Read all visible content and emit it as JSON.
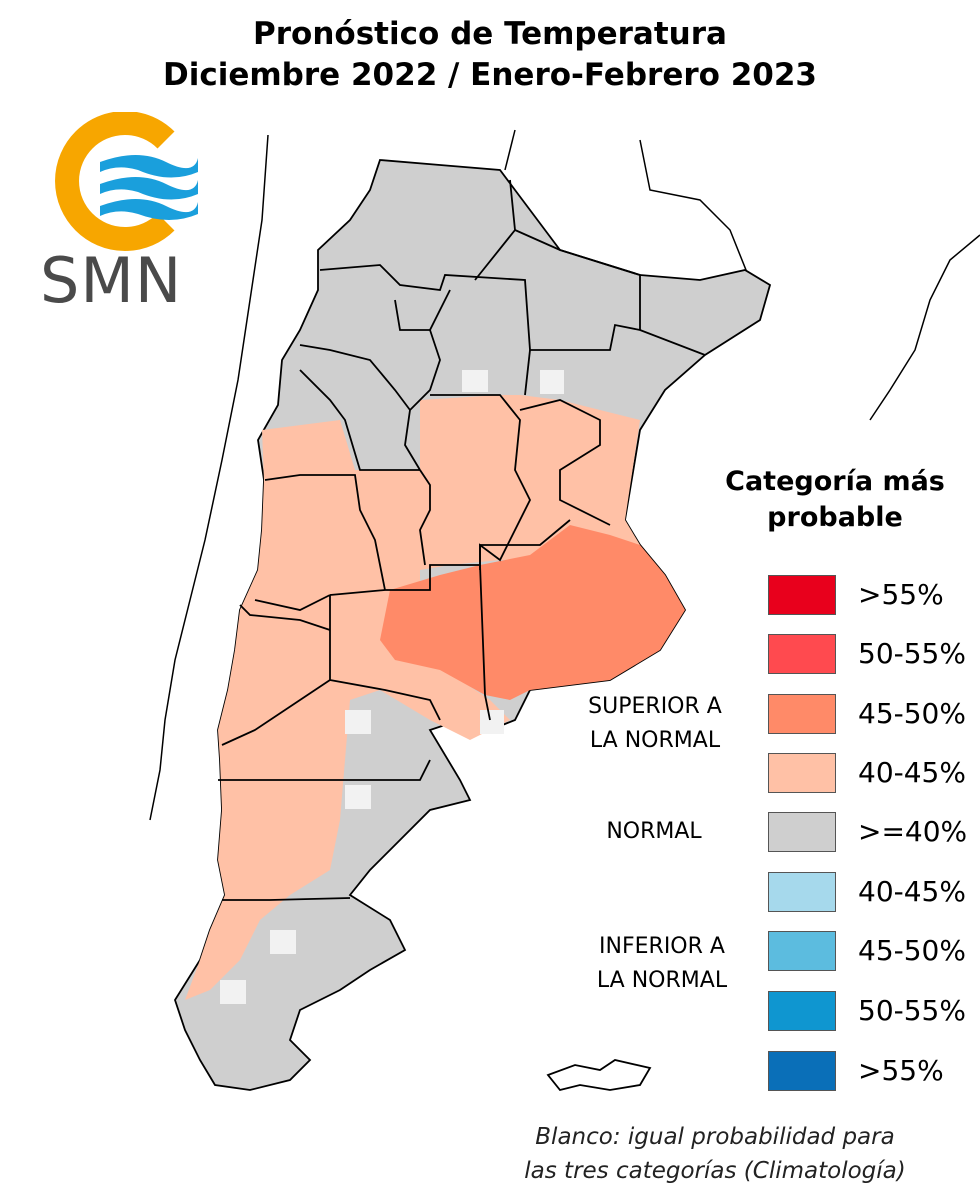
{
  "title_line1": "Pronóstico de Temperatura",
  "title_line2": "Diciembre 2022 / Enero-Febrero 2023",
  "logo_text": "SMN",
  "legend": {
    "title_line1": "Categoría más",
    "title_line2": "probable",
    "items": [
      {
        "label": ">55%",
        "color": "#e8001c"
      },
      {
        "label": "50-55%",
        "color": "#ff4a4f"
      },
      {
        "label": "45-50%",
        "color": "#ff8a68"
      },
      {
        "label": "40-45%",
        "color": "#ffc1a6"
      },
      {
        "label": ">=40%",
        "color": "#cfcfcf"
      },
      {
        "label": "40-45%",
        "color": "#a6d9ec"
      },
      {
        "label": "45-50%",
        "color": "#5cbcdf"
      },
      {
        "label": "50-55%",
        "color": "#0f96d0"
      },
      {
        "label": ">55%",
        "color": "#0a6fb8"
      }
    ],
    "groups": {
      "superior_line1": "SUPERIOR A",
      "superior_line2": "LA NORMAL",
      "normal": "NORMAL",
      "inferior_line1": "INFERIOR A",
      "inferior_line2": "LA NORMAL"
    }
  },
  "note_line1": "Blanco: igual probabilidad para",
  "note_line2": "las tres categorías (Climatología)",
  "colors": {
    "above_strong": "#ff8a68",
    "above_weak": "#ffc1a6",
    "normal": "#cfcfcf",
    "equal_probability": "#ffffff",
    "border": "#000000",
    "logo_ring": "#f7a600",
    "logo_waves": "#1a9fdc"
  }
}
